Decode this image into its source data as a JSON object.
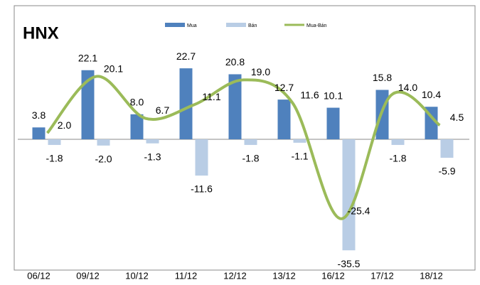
{
  "chart_data": {
    "type": "bar",
    "title": "HNX",
    "categories": [
      "06/12",
      "09/12",
      "10/12",
      "11/12",
      "12/12",
      "13/12",
      "16/12",
      "17/12",
      "18/12"
    ],
    "series": [
      {
        "name": "Mua",
        "color": "#4f81bd",
        "values": [
          3.8,
          22.1,
          8.0,
          22.7,
          20.8,
          12.7,
          10.1,
          15.8,
          10.4
        ],
        "value_labels": [
          "3.8",
          "22.1",
          "8.0",
          "22.7",
          "20.8",
          "12.7",
          "10.1",
          "15.8",
          "10.4"
        ]
      },
      {
        "name": "Bán",
        "color": "#b9cde5",
        "values": [
          -1.8,
          -2.0,
          -1.3,
          -11.6,
          -1.8,
          -1.1,
          -35.5,
          -1.8,
          -5.9
        ],
        "value_labels": [
          "-1.8",
          "-2.0",
          "-1.3",
          "-11.6",
          "-1.8",
          "-1.1",
          "-35.5",
          "-1.8",
          "-5.9"
        ]
      },
      {
        "name": "Mua-Bán",
        "type": "line",
        "color": "#9bbb59",
        "values": [
          2.0,
          20.1,
          6.7,
          11.1,
          19.0,
          11.6,
          -25.4,
          14.0,
          4.5
        ],
        "value_labels": [
          "2.0",
          "20.1",
          "6.7",
          "11.1",
          "19.0",
          "11.6",
          "-25.4",
          "14.0",
          "4.5"
        ]
      }
    ],
    "ylim": [
      -40,
      40
    ],
    "legend": "top"
  }
}
